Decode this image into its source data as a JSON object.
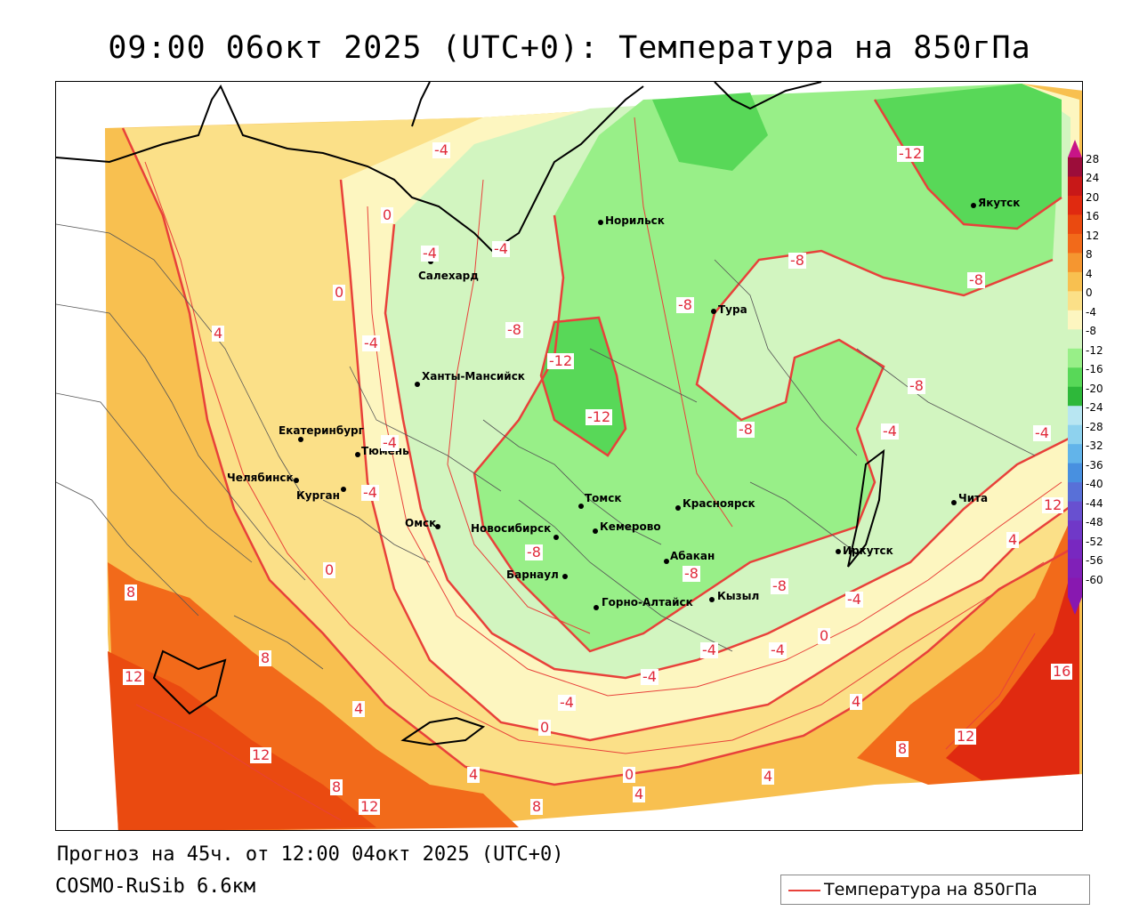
{
  "title": "09:00 06окт 2025 (UTC+0): Температура на 850гПа",
  "forecast_text": "Прогноз на 45ч. от 12:00 04окт 2025 (UTC+0)",
  "model_text": "COSMO-RuSib 6.6км",
  "legend": {
    "label": "Температура на 850гПа",
    "line_color": "#e8413a"
  },
  "colorbar": {
    "labels": [
      "28",
      "24",
      "20",
      "16",
      "12",
      "8",
      "4",
      "0",
      "-4",
      "-8",
      "-12",
      "-16",
      "-20",
      "-24",
      "-28",
      "-32",
      "-36",
      "-40",
      "-44",
      "-48",
      "-52",
      "-56",
      "-60"
    ],
    "colors": [
      "#9c0d3a",
      "#c81818",
      "#e02a10",
      "#ea4a10",
      "#f26a1a",
      "#f59630",
      "#f8c050",
      "#fbe088",
      "#fdf6c0",
      "#d2f5c0",
      "#98ef88",
      "#58d858",
      "#2eb83a",
      "#b8e6f2",
      "#8ed2ee",
      "#62b4ea",
      "#4890e0",
      "#5870d8",
      "#6850d0",
      "#7038c8",
      "#7828c0",
      "#8020b8",
      "#8818b0"
    ]
  },
  "cities": [
    {
      "name": "Норильск"
    },
    {
      "name": "Якутск"
    },
    {
      "name": "Салехард"
    },
    {
      "name": "Тура"
    },
    {
      "name": "Ханты-Мансийск"
    },
    {
      "name": "Екатеринбург"
    },
    {
      "name": "Тюмень"
    },
    {
      "name": "Челябинск"
    },
    {
      "name": "Курган"
    },
    {
      "name": "Омск"
    },
    {
      "name": "Новосибирск"
    },
    {
      "name": "Томск"
    },
    {
      "name": "Кемерово"
    },
    {
      "name": "Красноярск"
    },
    {
      "name": "Барнаул"
    },
    {
      "name": "Абакан"
    },
    {
      "name": "Горно-Алтайск"
    },
    {
      "name": "Кызыл"
    },
    {
      "name": "Иркутск"
    },
    {
      "name": "Чита"
    }
  ],
  "isotherm_labels": [
    "-4",
    "0",
    "-4",
    "0",
    "-4",
    "-4",
    "4",
    "-4",
    "-4",
    "-8",
    "-12",
    "-12",
    "-8",
    "-8",
    "-8",
    "-8",
    "-12",
    "-8",
    "-4",
    "-4",
    "4",
    "12",
    "-8",
    "-8",
    "-8",
    "8",
    "12",
    "8",
    "4",
    "0",
    "-4",
    "-4",
    "-4",
    "0",
    "-4",
    "0",
    "4",
    "12",
    "8",
    "12",
    "4",
    "0",
    "4",
    "8",
    "4",
    "-4",
    "8",
    "12",
    "16"
  ]
}
